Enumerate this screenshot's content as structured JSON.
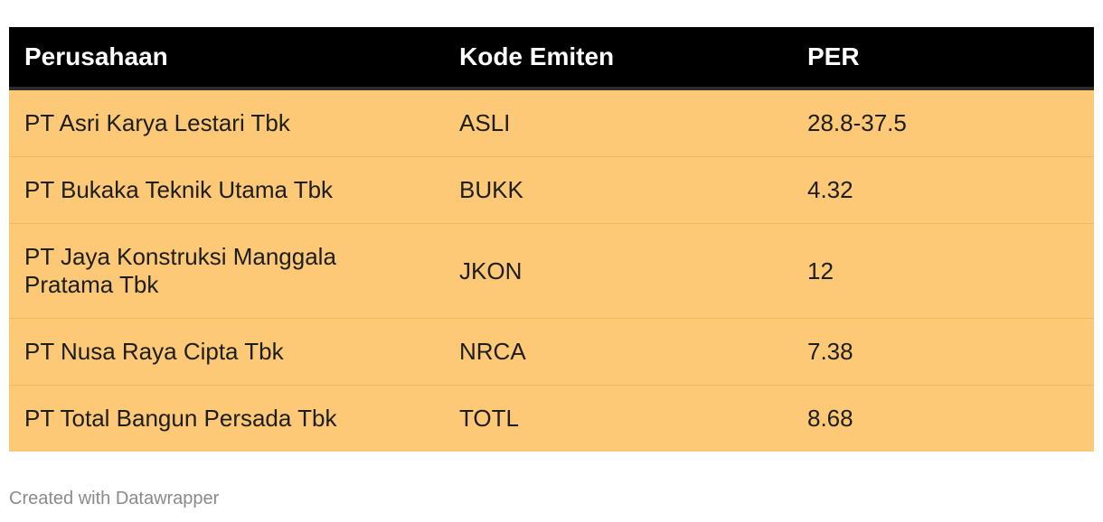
{
  "chart_data": {
    "type": "table",
    "columns": [
      "Perusahaan",
      "Kode Emiten",
      "PER"
    ],
    "rows": [
      {
        "company": "PT Asri Karya Lestari Tbk",
        "code": "ASLI",
        "per": "28.8-37.5"
      },
      {
        "company": "PT Bukaka Teknik Utama Tbk",
        "code": "BUKK",
        "per": "4.32"
      },
      {
        "company": "PT Jaya Konstruksi Manggala Pratama Tbk",
        "code": "JKON",
        "per": "12"
      },
      {
        "company": "PT Nusa Raya Cipta Tbk",
        "code": "NRCA",
        "per": "7.38"
      },
      {
        "company": "PT Total Bangun Persada Tbk",
        "code": "TOTL",
        "per": "8.68"
      }
    ]
  },
  "colors": {
    "header_bg": "#000000",
    "header_text": "#ffffff",
    "row_bg": "#fdc976",
    "row_divider": "#f2b960"
  },
  "footer": {
    "credit": "Created with Datawrapper"
  }
}
